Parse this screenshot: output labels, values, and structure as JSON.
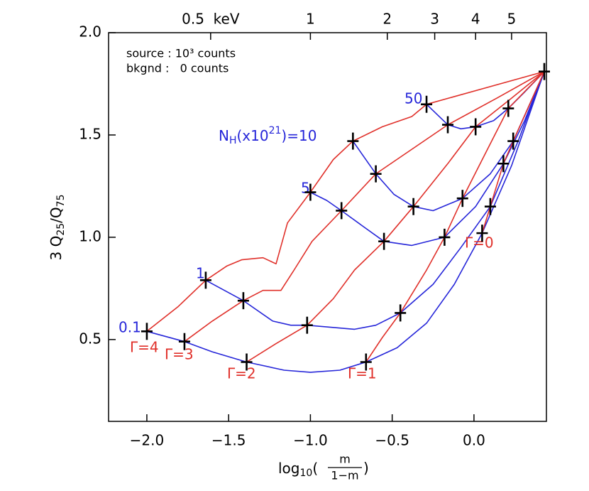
{
  "chart_data": {
    "type": "line",
    "xlim": [
      -2.234,
      0.443
    ],
    "ylim": [
      0.1,
      2.0
    ],
    "xticks": [
      {
        "value": -2.0,
        "label": "−2.0"
      },
      {
        "value": -1.5,
        "label": "−1.5"
      },
      {
        "value": -1.0,
        "label": "−1.0"
      },
      {
        "value": -0.5,
        "label": "−0.5"
      },
      {
        "value": 0.0,
        "label": "0.0"
      }
    ],
    "yticks": [
      {
        "value": 0.5,
        "label": "0.5"
      },
      {
        "value": 1.0,
        "label": "1.0"
      },
      {
        "value": 1.5,
        "label": "1.5"
      },
      {
        "value": 2.0,
        "label": "2.0"
      }
    ],
    "x2ticks": [
      {
        "value": -1.61,
        "label": "0.5  keV"
      },
      {
        "value": -1.0,
        "label": "1"
      },
      {
        "value": -0.53,
        "label": "2"
      },
      {
        "value": -0.24,
        "label": "3"
      },
      {
        "value": 0.01,
        "label": "4"
      },
      {
        "value": 0.23,
        "label": "5"
      }
    ],
    "annotations": [
      "source : 10³ counts",
      "bkgnd :   0 counts"
    ],
    "y_label": {
      "lead": "3 Q",
      "sub1": "25",
      "mid": "/Q",
      "sub2": "75"
    },
    "x_label": {
      "lead": "log",
      "sub": "10",
      "open": "(",
      "numerator": "m",
      "denominator": "1−m",
      "close": ")"
    },
    "nh_label": {
      "lead": "N",
      "sub": "H",
      "mid": "(x10",
      "sup": "21",
      "end": ")="
    },
    "curves": [
      {
        "name": "0.1",
        "color": "#2626d9",
        "x": [
          -2.0,
          -1.77,
          -1.6,
          -1.39,
          -1.16,
          -1.0,
          -0.82,
          -0.66,
          -0.47,
          -0.29,
          -0.12,
          0.05,
          0.23,
          0.43
        ],
        "y": [
          0.54,
          0.49,
          0.44,
          0.39,
          0.35,
          0.34,
          0.35,
          0.39,
          0.46,
          0.58,
          0.77,
          1.02,
          1.35,
          1.81
        ]
      },
      {
        "name": "1",
        "color": "#2626d9",
        "x": [
          -1.64,
          -1.41,
          -1.23,
          -1.12,
          -1.02,
          -0.73,
          -0.6,
          -0.45,
          -0.25,
          -0.08,
          0.1,
          0.27,
          0.43
        ],
        "y": [
          0.79,
          0.69,
          0.59,
          0.57,
          0.57,
          0.55,
          0.57,
          0.63,
          0.77,
          0.95,
          1.15,
          1.47,
          1.81
        ]
      },
      {
        "name": "5",
        "color": "#2626d9",
        "x": [
          -1.0,
          -0.9,
          -0.81,
          -0.69,
          -0.55,
          -0.38,
          -0.18,
          0.01,
          0.18,
          0.31,
          0.43
        ],
        "y": [
          1.22,
          1.18,
          1.13,
          1.06,
          0.98,
          0.96,
          1.0,
          1.15,
          1.36,
          1.57,
          1.81
        ]
      },
      {
        "name": "10",
        "color": "#2626d9",
        "x": [
          -0.74,
          -0.6,
          -0.49,
          -0.37,
          -0.25,
          -0.07,
          0.1,
          0.24,
          0.43
        ],
        "y": [
          1.47,
          1.31,
          1.21,
          1.15,
          1.13,
          1.19,
          1.31,
          1.47,
          1.81
        ]
      },
      {
        "name": "50",
        "color": "#2626d9",
        "x": [
          -0.29,
          -0.16,
          -0.08,
          0.01,
          0.12,
          0.21,
          0.31,
          0.43
        ],
        "y": [
          1.65,
          1.55,
          1.53,
          1.54,
          1.57,
          1.63,
          1.71,
          1.81
        ]
      },
      {
        "name": "Γ=4",
        "color": "#e0302a",
        "x": [
          -2.0,
          -1.81,
          -1.64,
          -1.51,
          -1.42,
          -1.29,
          -1.21,
          -1.14,
          -1.0,
          -0.86,
          -0.74,
          -0.56,
          -0.38,
          -0.29,
          0.43
        ],
        "y": [
          0.54,
          0.66,
          0.79,
          0.86,
          0.89,
          0.9,
          0.87,
          1.07,
          1.22,
          1.38,
          1.47,
          1.54,
          1.59,
          1.65,
          1.81
        ]
      },
      {
        "name": "Γ=3",
        "color": "#e0302a",
        "x": [
          -1.77,
          -1.6,
          -1.41,
          -1.29,
          -1.18,
          -1.1,
          -0.99,
          -0.81,
          -0.6,
          -0.38,
          -0.16,
          0.14,
          0.43
        ],
        "y": [
          0.49,
          0.59,
          0.69,
          0.74,
          0.74,
          0.84,
          0.98,
          1.13,
          1.31,
          1.43,
          1.55,
          1.68,
          1.81
        ]
      },
      {
        "name": "Γ=2",
        "color": "#e0302a",
        "x": [
          -1.39,
          -1.21,
          -1.02,
          -0.86,
          -0.73,
          -0.55,
          -0.37,
          -0.16,
          0.01,
          0.23,
          0.43
        ],
        "y": [
          0.39,
          0.48,
          0.57,
          0.7,
          0.84,
          0.98,
          1.15,
          1.36,
          1.54,
          1.68,
          1.81
        ]
      },
      {
        "name": "Γ=1",
        "color": "#e0302a",
        "x": [
          -0.66,
          -0.56,
          -0.45,
          -0.29,
          -0.18,
          -0.07,
          0.07,
          0.21,
          0.43
        ],
        "y": [
          0.39,
          0.51,
          0.63,
          0.84,
          1.0,
          1.19,
          1.41,
          1.63,
          1.81
        ]
      },
      {
        "name": "Γ=0",
        "color": "#e0302a",
        "x": [
          0.05,
          0.1,
          0.18,
          0.24,
          0.43
        ],
        "y": [
          1.02,
          1.15,
          1.36,
          1.47,
          1.81
        ]
      }
    ],
    "markers": {
      "color": "#000000",
      "x": [
        -2.0,
        -1.77,
        -1.39,
        -0.66,
        0.05,
        -1.64,
        -1.41,
        -1.02,
        -0.45,
        0.1,
        -1.0,
        -0.81,
        -0.55,
        -0.18,
        0.18,
        -0.74,
        -0.6,
        -0.37,
        -0.07,
        0.24,
        -0.29,
        -0.16,
        0.01,
        0.21,
        0.43
      ],
      "y": [
        0.54,
        0.49,
        0.39,
        0.39,
        1.02,
        0.79,
        0.69,
        0.57,
        0.63,
        1.15,
        1.22,
        1.13,
        0.98,
        1.0,
        1.36,
        1.47,
        1.31,
        1.15,
        1.19,
        1.47,
        1.65,
        1.55,
        1.54,
        1.63,
        1.81
      ]
    }
  }
}
